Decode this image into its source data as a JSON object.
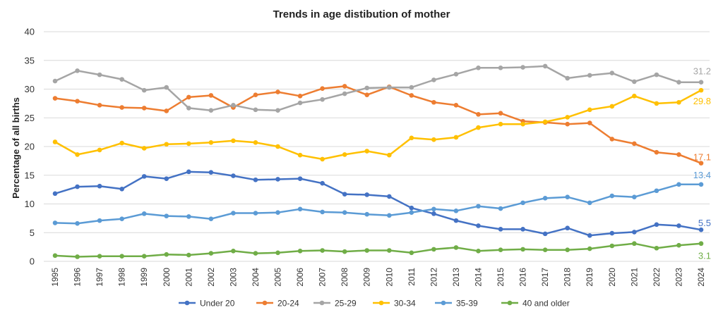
{
  "chart_data": {
    "type": "line",
    "title": "Trends in age distibution of mother",
    "xlabel": "",
    "ylabel": "Percentage of all births",
    "ylim": [
      0,
      40
    ],
    "yticks": [
      0,
      5,
      10,
      15,
      20,
      25,
      30,
      35,
      40
    ],
    "grid": true,
    "legend_position": "bottom",
    "x": [
      "1995",
      "1996",
      "1997",
      "1998",
      "1999",
      "2000",
      "2001",
      "2002",
      "2003",
      "2004",
      "2005",
      "2006",
      "2007",
      "2008",
      "2009",
      "2010",
      "2011",
      "2012",
      "2013",
      "2014",
      "2015",
      "2016",
      "2017",
      "2018",
      "2019",
      "2020",
      "2021",
      "2022",
      "2023",
      "2024"
    ],
    "series": [
      {
        "name": "Under 20",
        "color": "#4472c4",
        "end_label": "5.5",
        "values": [
          11.8,
          13.0,
          13.1,
          12.6,
          14.8,
          14.4,
          15.6,
          15.5,
          14.9,
          14.2,
          14.3,
          14.4,
          13.6,
          11.7,
          11.6,
          11.3,
          9.3,
          8.3,
          7.1,
          6.2,
          5.6,
          5.6,
          4.8,
          5.8,
          4.5,
          4.9,
          5.1,
          6.4,
          6.2,
          5.5
        ]
      },
      {
        "name": "20-24",
        "color": "#ed7d31",
        "end_label": "17.1",
        "values": [
          28.4,
          27.9,
          27.2,
          26.8,
          26.7,
          26.2,
          28.6,
          28.9,
          26.8,
          29.0,
          29.5,
          28.8,
          30.1,
          30.5,
          29.0,
          30.4,
          28.9,
          27.7,
          27.2,
          25.6,
          25.8,
          24.4,
          24.2,
          23.9,
          24.1,
          21.3,
          20.5,
          19.0,
          18.6,
          17.1
        ]
      },
      {
        "name": "25-29",
        "color": "#a5a5a5",
        "end_label": "31.2",
        "values": [
          31.4,
          33.2,
          32.5,
          31.7,
          29.8,
          30.3,
          26.7,
          26.3,
          27.2,
          26.4,
          26.3,
          27.6,
          28.2,
          29.2,
          30.2,
          30.3,
          30.3,
          31.6,
          32.6,
          33.7,
          33.7,
          33.8,
          34.0,
          31.9,
          32.4,
          32.8,
          31.3,
          32.5,
          31.2,
          31.2
        ]
      },
      {
        "name": "30-34",
        "color": "#ffc000",
        "end_label": "29.8",
        "values": [
          20.8,
          18.6,
          19.4,
          20.6,
          19.7,
          20.4,
          20.5,
          20.7,
          21.0,
          20.7,
          20.0,
          18.5,
          17.8,
          18.6,
          19.2,
          18.5,
          21.5,
          21.2,
          21.6,
          23.3,
          23.9,
          23.9,
          24.3,
          25.1,
          26.4,
          27.0,
          28.8,
          27.5,
          27.7,
          29.8
        ]
      },
      {
        "name": "35-39",
        "color": "#5b9bd5",
        "end_label": "13.4",
        "values": [
          6.7,
          6.6,
          7.1,
          7.4,
          8.3,
          7.9,
          7.8,
          7.4,
          8.4,
          8.4,
          8.5,
          9.1,
          8.6,
          8.5,
          8.2,
          8.0,
          8.5,
          9.1,
          8.8,
          9.6,
          9.2,
          10.2,
          11.0,
          11.2,
          10.2,
          11.4,
          11.2,
          12.3,
          13.4,
          13.4
        ]
      },
      {
        "name": "40 and older",
        "color": "#70ad47",
        "end_label": "3.1",
        "values": [
          1.0,
          0.8,
          0.9,
          0.9,
          0.9,
          1.2,
          1.1,
          1.4,
          1.8,
          1.4,
          1.5,
          1.8,
          1.9,
          1.7,
          1.9,
          1.9,
          1.5,
          2.1,
          2.4,
          1.8,
          2.0,
          2.1,
          2.0,
          2.0,
          2.2,
          2.7,
          3.1,
          2.3,
          2.8,
          3.1
        ]
      }
    ]
  }
}
